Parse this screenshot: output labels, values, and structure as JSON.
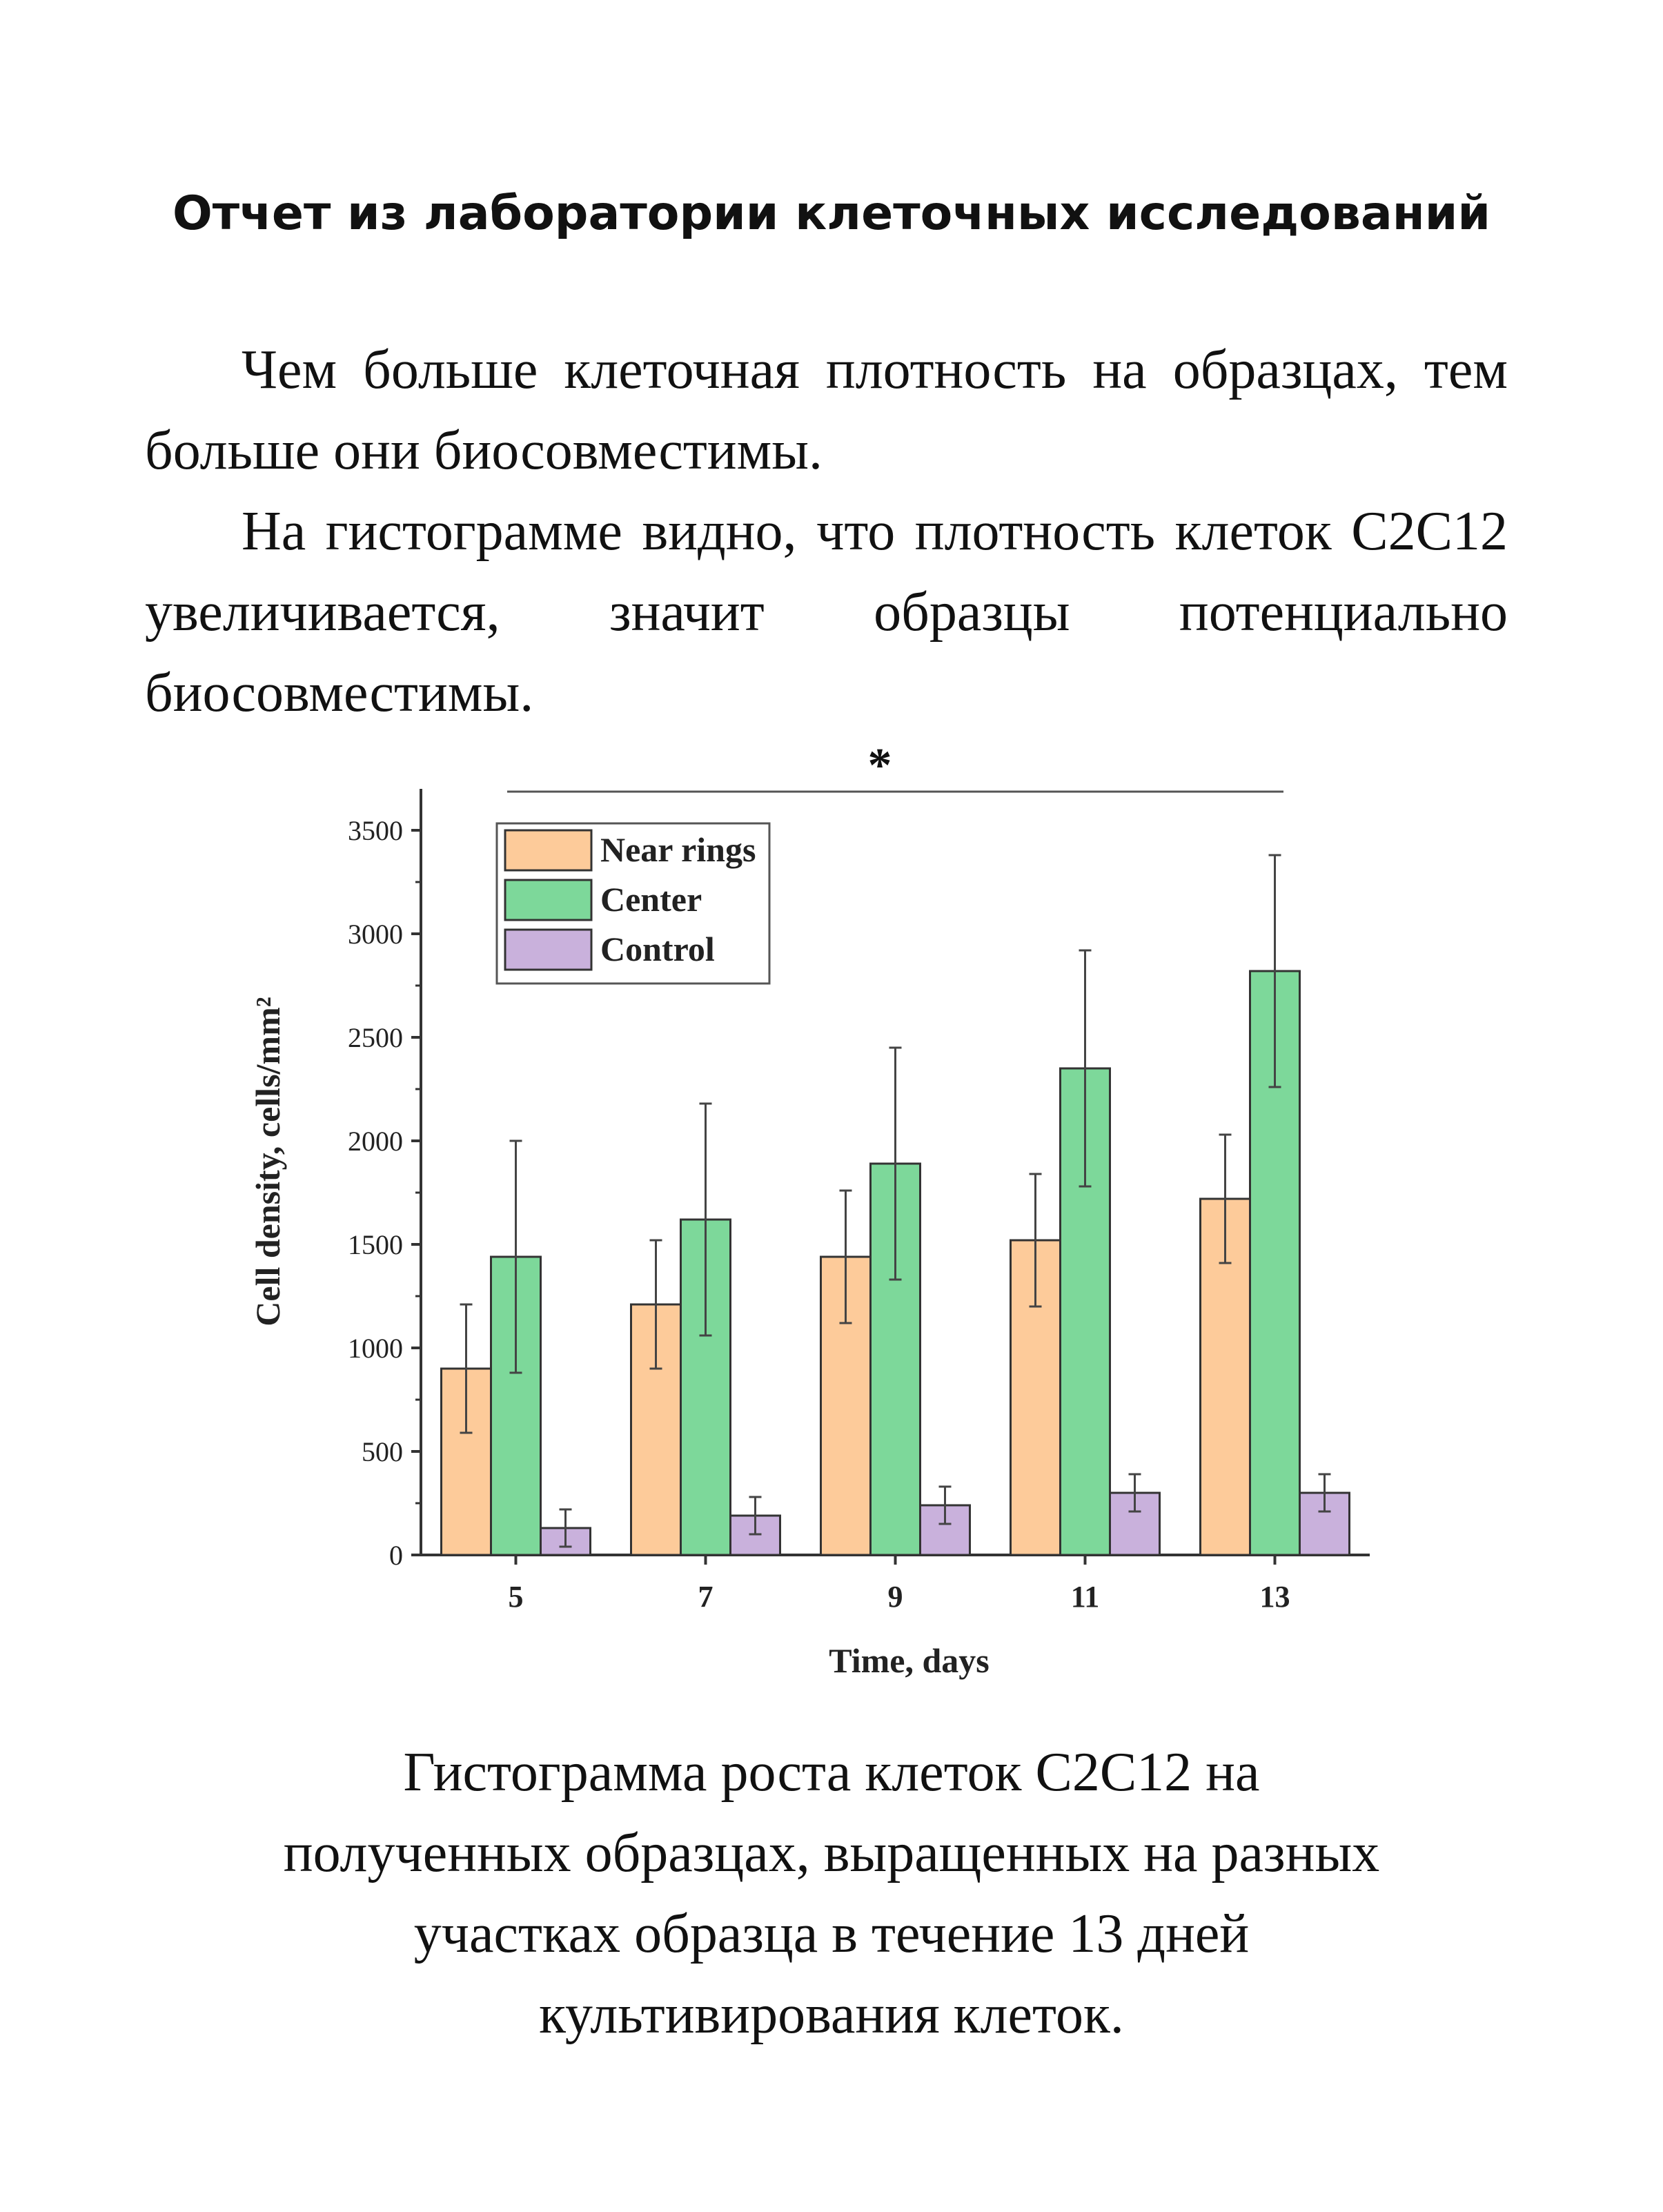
{
  "document": {
    "title": "Отчет из лаборатории клеточных исследований",
    "paragraphs": [
      "Чем больше клеточная плотность на образцах, тем больше они биосовместимы.",
      "На гистограмме видно, что плотность клеток C2C12 увеличивается, значит образцы потенциально биосовместимы."
    ],
    "caption_lines": [
      "Гистограмма роста клеток C2C12 на",
      "полученных образцах, выращенных на разных",
      "участках образца в течение 13 дней",
      "культивирования клеток."
    ]
  },
  "chart_data": {
    "type": "bar",
    "title": "",
    "xlabel": "Time, days",
    "ylabel": "Cell density, cells/mm²",
    "categories": [
      "5",
      "7",
      "9",
      "11",
      "13"
    ],
    "ylim": [
      0,
      3700
    ],
    "yticks": [
      0,
      500,
      1000,
      1500,
      2000,
      2500,
      3000,
      3500
    ],
    "grid": false,
    "legend_position": "top-left",
    "significance_marker": "*",
    "series": [
      {
        "name": "Near rings",
        "color": "#fdcb9a",
        "values": [
          900,
          1210,
          1440,
          1520,
          1720
        ],
        "errors": [
          310,
          310,
          320,
          320,
          310
        ]
      },
      {
        "name": "Center",
        "color": "#7dd89a",
        "values": [
          1440,
          1620,
          1890,
          2350,
          2820
        ],
        "errors": [
          560,
          560,
          560,
          570,
          560
        ]
      },
      {
        "name": "Control",
        "color": "#c9b1dc",
        "values": [
          130,
          190,
          240,
          300,
          300
        ],
        "errors": [
          90,
          90,
          90,
          90,
          90
        ]
      }
    ]
  }
}
